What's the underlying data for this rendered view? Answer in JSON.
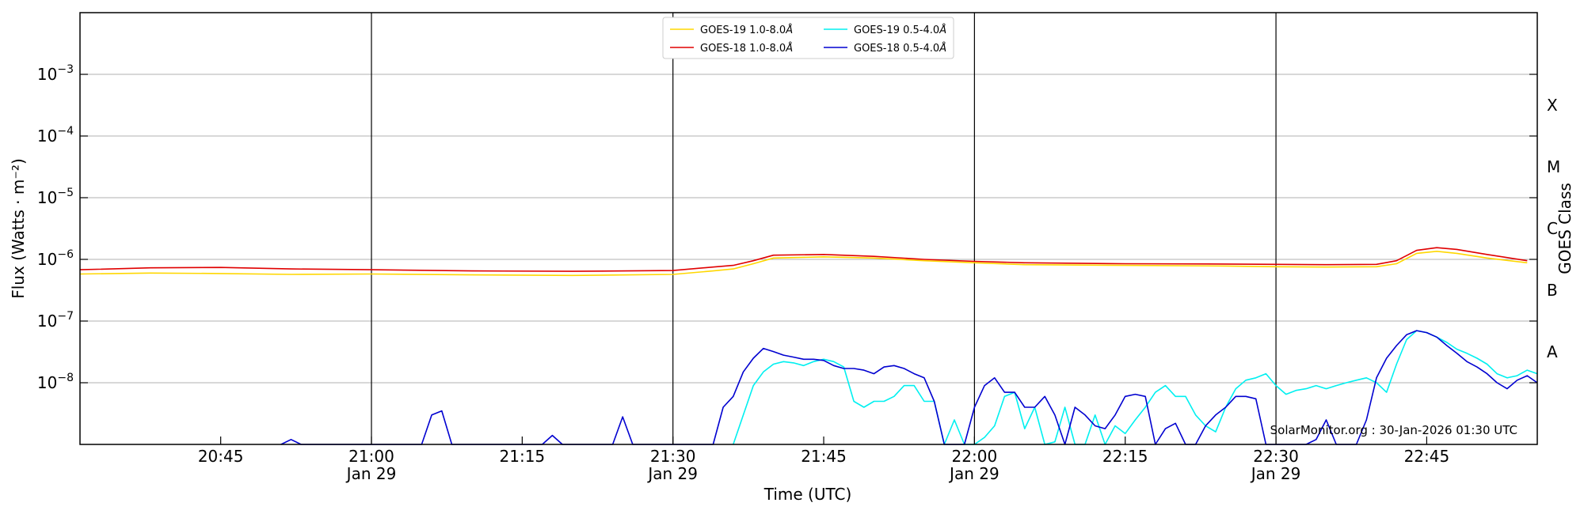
{
  "chart_data": {
    "type": "line",
    "xlabel": "Time (UTC)",
    "ylabel": "Flux (Watts · m⁻²)",
    "right_label": "GOES Class",
    "y_scale": "log",
    "ylim": [
      1e-09,
      0.01
    ],
    "xlim": [
      "20:31",
      "22:56"
    ],
    "x_ticks": [
      {
        "time": "20:45",
        "label": "20:45",
        "sub": ""
      },
      {
        "time": "21:00",
        "label": "21:00",
        "sub": "Jan 29"
      },
      {
        "time": "21:15",
        "label": "21:15",
        "sub": ""
      },
      {
        "time": "21:30",
        "label": "21:30",
        "sub": "Jan 29"
      },
      {
        "time": "21:45",
        "label": "21:45",
        "sub": ""
      },
      {
        "time": "22:00",
        "label": "22:00",
        "sub": "Jan 29"
      },
      {
        "time": "22:15",
        "label": "22:15",
        "sub": ""
      },
      {
        "time": "22:30",
        "label": "22:30",
        "sub": "Jan 29"
      },
      {
        "time": "22:45",
        "label": "22:45",
        "sub": ""
      }
    ],
    "day_lines": [
      "21:00",
      "21:30",
      "22:00",
      "22:30"
    ],
    "y_ticks": [
      {
        "exp": -8,
        "label": "10",
        "sup": "−8"
      },
      {
        "exp": -7,
        "label": "10",
        "sup": "−7"
      },
      {
        "exp": -6,
        "label": "10",
        "sup": "−6"
      },
      {
        "exp": -5,
        "label": "10",
        "sup": "−5"
      },
      {
        "exp": -4,
        "label": "10",
        "sup": "−4"
      },
      {
        "exp": -3,
        "label": "10",
        "sup": "−3"
      }
    ],
    "goes_classes": [
      {
        "label": "A",
        "exp": -7.5
      },
      {
        "label": "B",
        "exp": -6.5
      },
      {
        "label": "C",
        "exp": -5.5
      },
      {
        "label": "M",
        "exp": -4.5
      },
      {
        "label": "X",
        "exp": -3.5
      }
    ],
    "grid": true,
    "legend_position": "top-center",
    "series": [
      {
        "name": "GOES-19 1.0-8.0Å",
        "color": "#ffd700",
        "points": [
          [
            "20:31",
            5.8e-07
          ],
          [
            "20:38",
            6e-07
          ],
          [
            "20:45",
            5.9e-07
          ],
          [
            "20:52",
            5.7e-07
          ],
          [
            "21:00",
            5.8e-07
          ],
          [
            "21:10",
            5.6e-07
          ],
          [
            "21:20",
            5.5e-07
          ],
          [
            "21:30",
            5.7e-07
          ],
          [
            "21:34",
            6.5e-07
          ],
          [
            "21:36",
            7e-07
          ],
          [
            "21:38",
            8.5e-07
          ],
          [
            "21:40",
            1.05e-06
          ],
          [
            "21:45",
            1.1e-06
          ],
          [
            "21:50",
            1.05e-06
          ],
          [
            "21:55",
            9.5e-07
          ],
          [
            "22:00",
            8.8e-07
          ],
          [
            "22:05",
            8.2e-07
          ],
          [
            "22:15",
            8e-07
          ],
          [
            "22:25",
            7.8e-07
          ],
          [
            "22:30",
            7.6e-07
          ],
          [
            "22:35",
            7.5e-07
          ],
          [
            "22:40",
            7.6e-07
          ],
          [
            "22:42",
            8.5e-07
          ],
          [
            "22:44",
            1.25e-06
          ],
          [
            "22:46",
            1.35e-06
          ],
          [
            "22:48",
            1.25e-06
          ],
          [
            "22:51",
            1.05e-06
          ],
          [
            "22:55",
            8.8e-07
          ]
        ]
      },
      {
        "name": "GOES-18 1.0-8.0Å",
        "color": "#e00000",
        "points": [
          [
            "20:31",
            6.8e-07
          ],
          [
            "20:38",
            7.3e-07
          ],
          [
            "20:45",
            7.4e-07
          ],
          [
            "20:52",
            7e-07
          ],
          [
            "21:00",
            6.8e-07
          ],
          [
            "21:10",
            6.5e-07
          ],
          [
            "21:20",
            6.4e-07
          ],
          [
            "21:30",
            6.6e-07
          ],
          [
            "21:34",
            7.5e-07
          ],
          [
            "21:36",
            8e-07
          ],
          [
            "21:38",
            9.5e-07
          ],
          [
            "21:40",
            1.17e-06
          ],
          [
            "21:45",
            1.2e-06
          ],
          [
            "21:50",
            1.12e-06
          ],
          [
            "21:55",
            1e-06
          ],
          [
            "22:00",
            9.3e-07
          ],
          [
            "22:05",
            8.8e-07
          ],
          [
            "22:15",
            8.5e-07
          ],
          [
            "22:25",
            8.4e-07
          ],
          [
            "22:30",
            8.3e-07
          ],
          [
            "22:35",
            8.2e-07
          ],
          [
            "22:40",
            8.3e-07
          ],
          [
            "22:42",
            9.5e-07
          ],
          [
            "22:44",
            1.4e-06
          ],
          [
            "22:46",
            1.55e-06
          ],
          [
            "22:48",
            1.45e-06
          ],
          [
            "22:51",
            1.2e-06
          ],
          [
            "22:55",
            9.5e-07
          ]
        ]
      },
      {
        "name": "GOES-19 0.5-4.0Å",
        "color": "#00f0f0",
        "points": [
          [
            "21:36",
            1e-09
          ],
          [
            "21:38",
            9e-09
          ],
          [
            "21:39",
            1.5e-08
          ],
          [
            "21:40",
            2e-08
          ],
          [
            "21:41",
            2.2e-08
          ],
          [
            "21:42",
            2.1e-08
          ],
          [
            "21:43",
            1.9e-08
          ],
          [
            "21:44",
            2.2e-08
          ],
          [
            "21:45",
            2.4e-08
          ],
          [
            "21:46",
            2.2e-08
          ],
          [
            "21:47",
            1.8e-08
          ],
          [
            "21:48",
            5e-09
          ],
          [
            "21:49",
            4e-09
          ],
          [
            "21:50",
            5e-09
          ],
          [
            "21:51",
            5e-09
          ],
          [
            "21:52",
            6e-09
          ],
          [
            "21:53",
            9e-09
          ],
          [
            "21:54",
            9e-09
          ],
          [
            "21:55",
            5e-09
          ],
          [
            "21:56",
            5e-09
          ],
          [
            "21:57",
            1e-09
          ],
          [
            "21:58",
            2.5e-09
          ],
          [
            "21:59",
            1e-09
          ],
          [
            "22:00",
            1e-09
          ],
          [
            "22:01",
            1.3e-09
          ],
          [
            "22:02",
            2e-09
          ],
          [
            "22:03",
            6e-09
          ],
          [
            "22:04",
            7e-09
          ],
          [
            "22:05",
            1.8e-09
          ],
          [
            "22:06",
            4e-09
          ],
          [
            "22:07",
            1e-09
          ],
          [
            "22:08",
            1.1e-09
          ],
          [
            "22:09",
            4e-09
          ],
          [
            "22:10",
            1e-09
          ],
          [
            "22:11",
            1e-09
          ],
          [
            "22:12",
            3e-09
          ],
          [
            "22:13",
            1e-09
          ],
          [
            "22:14",
            2e-09
          ],
          [
            "22:15",
            1.5e-09
          ],
          [
            "22:16",
            2.5e-09
          ],
          [
            "22:17",
            4e-09
          ],
          [
            "22:18",
            7e-09
          ],
          [
            "22:19",
            9e-09
          ],
          [
            "22:20",
            6e-09
          ],
          [
            "22:21",
            6e-09
          ],
          [
            "22:22",
            3e-09
          ],
          [
            "22:23",
            2e-09
          ],
          [
            "22:24",
            1.6e-09
          ],
          [
            "22:25",
            4e-09
          ],
          [
            "22:26",
            8e-09
          ],
          [
            "22:27",
            1.1e-08
          ],
          [
            "22:28",
            1.2e-08
          ],
          [
            "22:29",
            1.4e-08
          ],
          [
            "22:30",
            9e-09
          ],
          [
            "22:31",
            6.5e-09
          ],
          [
            "22:32",
            7.5e-09
          ],
          [
            "22:33",
            8e-09
          ],
          [
            "22:34",
            9e-09
          ],
          [
            "22:35",
            8e-09
          ],
          [
            "22:36",
            9e-09
          ],
          [
            "22:37",
            1e-08
          ],
          [
            "22:38",
            1.1e-08
          ],
          [
            "22:39",
            1.2e-08
          ],
          [
            "22:40",
            1e-08
          ],
          [
            "22:41",
            7e-09
          ],
          [
            "22:42",
            2e-08
          ],
          [
            "22:43",
            5e-08
          ],
          [
            "22:44",
            7e-08
          ],
          [
            "22:45",
            6.5e-08
          ],
          [
            "22:46",
            5.5e-08
          ],
          [
            "22:47",
            4.5e-08
          ],
          [
            "22:48",
            3.5e-08
          ],
          [
            "22:49",
            3e-08
          ],
          [
            "22:50",
            2.5e-08
          ],
          [
            "22:51",
            2e-08
          ],
          [
            "22:52",
            1.4e-08
          ],
          [
            "22:53",
            1.2e-08
          ],
          [
            "22:54",
            1.3e-08
          ],
          [
            "22:55",
            1.6e-08
          ],
          [
            "22:56",
            1.4e-08
          ]
        ]
      },
      {
        "name": "GOES-18 0.5-4.0Å",
        "color": "#0000d0",
        "points": [
          [
            "20:51",
            1e-09
          ],
          [
            "20:52",
            1.2e-09
          ],
          [
            "20:53",
            1e-09
          ],
          [
            "21:05",
            1e-09
          ],
          [
            "21:06",
            3e-09
          ],
          [
            "21:07",
            3.5e-09
          ],
          [
            "21:08",
            1e-09
          ],
          [
            "21:17",
            1e-09
          ],
          [
            "21:18",
            1.4e-09
          ],
          [
            "21:19",
            1e-09
          ],
          [
            "21:24",
            1e-09
          ],
          [
            "21:25",
            2.8e-09
          ],
          [
            "21:26",
            1e-09
          ],
          [
            "21:34",
            1e-09
          ],
          [
            "21:35",
            4e-09
          ],
          [
            "21:36",
            6e-09
          ],
          [
            "21:37",
            1.5e-08
          ],
          [
            "21:38",
            2.5e-08
          ],
          [
            "21:39",
            3.6e-08
          ],
          [
            "21:40",
            3.2e-08
          ],
          [
            "21:41",
            2.8e-08
          ],
          [
            "21:42",
            2.6e-08
          ],
          [
            "21:43",
            2.4e-08
          ],
          [
            "21:44",
            2.4e-08
          ],
          [
            "21:45",
            2.3e-08
          ],
          [
            "21:46",
            1.9e-08
          ],
          [
            "21:47",
            1.7e-08
          ],
          [
            "21:48",
            1.7e-08
          ],
          [
            "21:49",
            1.6e-08
          ],
          [
            "21:50",
            1.4e-08
          ],
          [
            "21:51",
            1.8e-08
          ],
          [
            "21:52",
            1.9e-08
          ],
          [
            "21:53",
            1.7e-08
          ],
          [
            "21:54",
            1.4e-08
          ],
          [
            "21:55",
            1.2e-08
          ],
          [
            "21:56",
            5e-09
          ],
          [
            "21:57",
            1e-09
          ],
          [
            "21:59",
            1e-09
          ],
          [
            "22:00",
            4e-09
          ],
          [
            "22:01",
            9e-09
          ],
          [
            "22:02",
            1.2e-08
          ],
          [
            "22:03",
            7e-09
          ],
          [
            "22:04",
            7e-09
          ],
          [
            "22:05",
            4e-09
          ],
          [
            "22:06",
            4e-09
          ],
          [
            "22:07",
            6e-09
          ],
          [
            "22:08",
            3e-09
          ],
          [
            "22:09",
            1e-09
          ],
          [
            "22:10",
            4e-09
          ],
          [
            "22:11",
            3e-09
          ],
          [
            "22:12",
            2e-09
          ],
          [
            "22:13",
            1.8e-09
          ],
          [
            "22:14",
            3e-09
          ],
          [
            "22:15",
            6e-09
          ],
          [
            "22:16",
            6.5e-09
          ],
          [
            "22:17",
            6e-09
          ],
          [
            "22:18",
            1e-09
          ],
          [
            "22:19",
            1.8e-09
          ],
          [
            "22:20",
            2.2e-09
          ],
          [
            "22:21",
            1e-09
          ],
          [
            "22:22",
            1e-09
          ],
          [
            "22:23",
            2e-09
          ],
          [
            "22:24",
            3e-09
          ],
          [
            "22:25",
            4e-09
          ],
          [
            "22:26",
            6e-09
          ],
          [
            "22:27",
            6e-09
          ],
          [
            "22:28",
            5.5e-09
          ],
          [
            "22:29",
            1e-09
          ],
          [
            "22:33",
            1e-09
          ],
          [
            "22:34",
            1.2e-09
          ],
          [
            "22:35",
            2.5e-09
          ],
          [
            "22:36",
            1e-09
          ],
          [
            "22:38",
            1e-09
          ],
          [
            "22:39",
            2.5e-09
          ],
          [
            "22:40",
            1.2e-08
          ],
          [
            "22:41",
            2.5e-08
          ],
          [
            "22:42",
            4e-08
          ],
          [
            "22:43",
            6e-08
          ],
          [
            "22:44",
            7e-08
          ],
          [
            "22:45",
            6.5e-08
          ],
          [
            "22:46",
            5.5e-08
          ],
          [
            "22:47",
            4e-08
          ],
          [
            "22:48",
            3e-08
          ],
          [
            "22:49",
            2.2e-08
          ],
          [
            "22:50",
            1.8e-08
          ],
          [
            "22:51",
            1.4e-08
          ],
          [
            "22:52",
            1e-08
          ],
          [
            "22:53",
            8e-09
          ],
          [
            "22:54",
            1.1e-08
          ],
          [
            "22:55",
            1.3e-08
          ],
          [
            "22:56",
            1e-08
          ]
        ]
      }
    ],
    "legend": [
      {
        "label": "GOES-19 1.0-8.0",
        "unit": "Å",
        "color": "#ffd700"
      },
      {
        "label": "GOES-19 0.5-4.0",
        "unit": "Å",
        "color": "#00f0f0"
      },
      {
        "label": "GOES-18 1.0-8.0",
        "unit": "Å",
        "color": "#e00000"
      },
      {
        "label": "GOES-18 0.5-4.0",
        "unit": "Å",
        "color": "#0000d0"
      }
    ],
    "credit": "SolarMonitor.org : 30-Jan-2026 01:30 UTC"
  }
}
